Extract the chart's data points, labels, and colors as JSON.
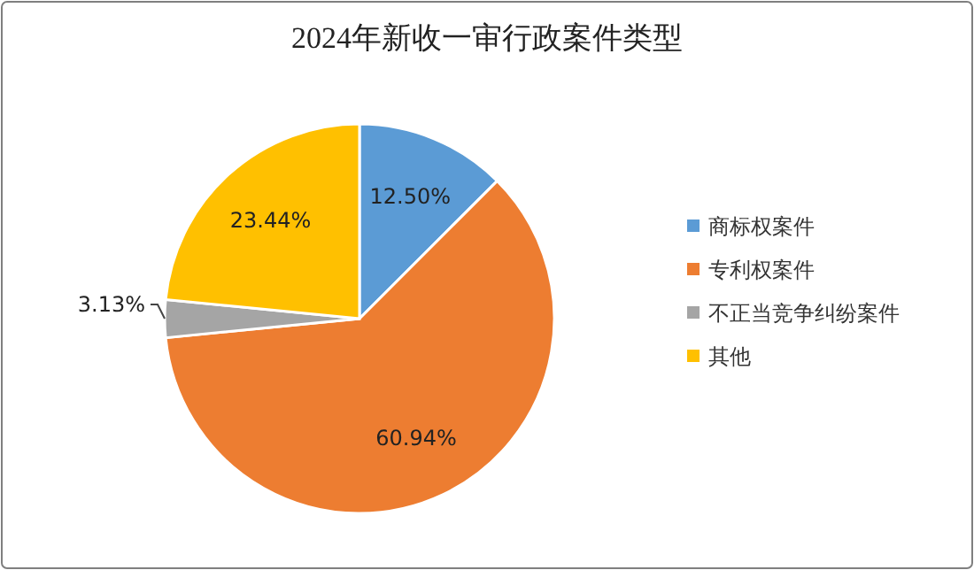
{
  "chart_data": {
    "type": "pie",
    "title": "2024年新收一审行政案件类型",
    "categories": [
      "商标权案件",
      "专利权案件",
      "不正当竞争纠纷案件",
      "其他"
    ],
    "values": [
      12.5,
      60.94,
      3.13,
      23.44
    ],
    "colors": [
      "#5b9bd5",
      "#ed7d31",
      "#a5a5a5",
      "#ffc000"
    ],
    "value_labels": [
      "12.50%",
      "60.94%",
      "3.13%",
      "23.44%"
    ],
    "legend": "right"
  }
}
